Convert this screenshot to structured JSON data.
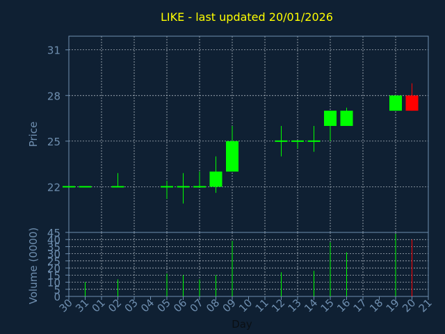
{
  "chart_data": {
    "type": "candlestick",
    "title": "LIKE - last updated 20/01/2026",
    "xlabel": "Day",
    "price_axis": {
      "label": "Price",
      "ticks": [
        22,
        25,
        28,
        31
      ],
      "ylim": [
        19.0,
        31.9
      ]
    },
    "volume_axis": {
      "label": "Volume (0000)",
      "ticks": [
        0,
        5,
        10,
        15,
        20,
        25,
        30,
        35,
        40,
        45
      ],
      "ylim": [
        0,
        45
      ]
    },
    "x_ticks": [
      "30",
      "31",
      "01",
      "02",
      "03",
      "04",
      "05",
      "06",
      "07",
      "08",
      "09",
      "10",
      "11",
      "12",
      "13",
      "14",
      "15",
      "16",
      "17",
      "18",
      "19",
      "20",
      "21"
    ],
    "grid": true,
    "colors": {
      "background": "#0f2033",
      "up": "#00ff00",
      "down": "#ff0000",
      "axis": "#6f8fb0",
      "title": "#ffff00",
      "label": "#6f8fb0"
    },
    "candles": [
      {
        "day": "30",
        "open": 22.0,
        "high": 22.0,
        "low": 22.0,
        "close": 22.0,
        "volume": 0
      },
      {
        "day": "31",
        "open": 22.0,
        "high": 22.0,
        "low": 22.0,
        "close": 22.0,
        "volume": 10
      },
      {
        "day": "02",
        "open": 22.0,
        "high": 22.9,
        "low": 22.0,
        "close": 22.0,
        "volume": 12
      },
      {
        "day": "05",
        "open": 22.0,
        "high": 22.4,
        "low": 21.2,
        "close": 22.0,
        "volume": 16
      },
      {
        "day": "06",
        "open": 22.0,
        "high": 22.9,
        "low": 20.9,
        "close": 22.0,
        "volume": 15
      },
      {
        "day": "07",
        "open": 22.0,
        "high": 23.0,
        "low": 22.0,
        "close": 22.0,
        "volume": 12
      },
      {
        "day": "08",
        "open": 22.0,
        "high": 24.0,
        "low": 21.6,
        "close": 23.0,
        "volume": 15
      },
      {
        "day": "09",
        "open": 23.0,
        "high": 26.0,
        "low": 23.0,
        "close": 25.0,
        "volume": 39
      },
      {
        "day": "12",
        "open": 25.0,
        "high": 26.0,
        "low": 24.0,
        "close": 25.0,
        "volume": 17
      },
      {
        "day": "13",
        "open": 25.0,
        "high": 25.0,
        "low": 24.5,
        "close": 25.0,
        "volume": 0
      },
      {
        "day": "14",
        "open": 25.0,
        "high": 26.0,
        "low": 24.3,
        "close": 25.0,
        "volume": 18
      },
      {
        "day": "15",
        "open": 26.0,
        "high": 27.0,
        "low": 25.0,
        "close": 27.0,
        "volume": 38
      },
      {
        "day": "16",
        "open": 26.0,
        "high": 27.2,
        "low": 26.0,
        "close": 27.0,
        "volume": 31
      },
      {
        "day": "19",
        "open": 27.0,
        "high": 28.0,
        "low": 27.0,
        "close": 28.0,
        "volume": 44
      },
      {
        "day": "20",
        "open": 28.0,
        "high": 28.8,
        "low": 27.0,
        "close": 27.0,
        "volume": 40
      }
    ]
  }
}
